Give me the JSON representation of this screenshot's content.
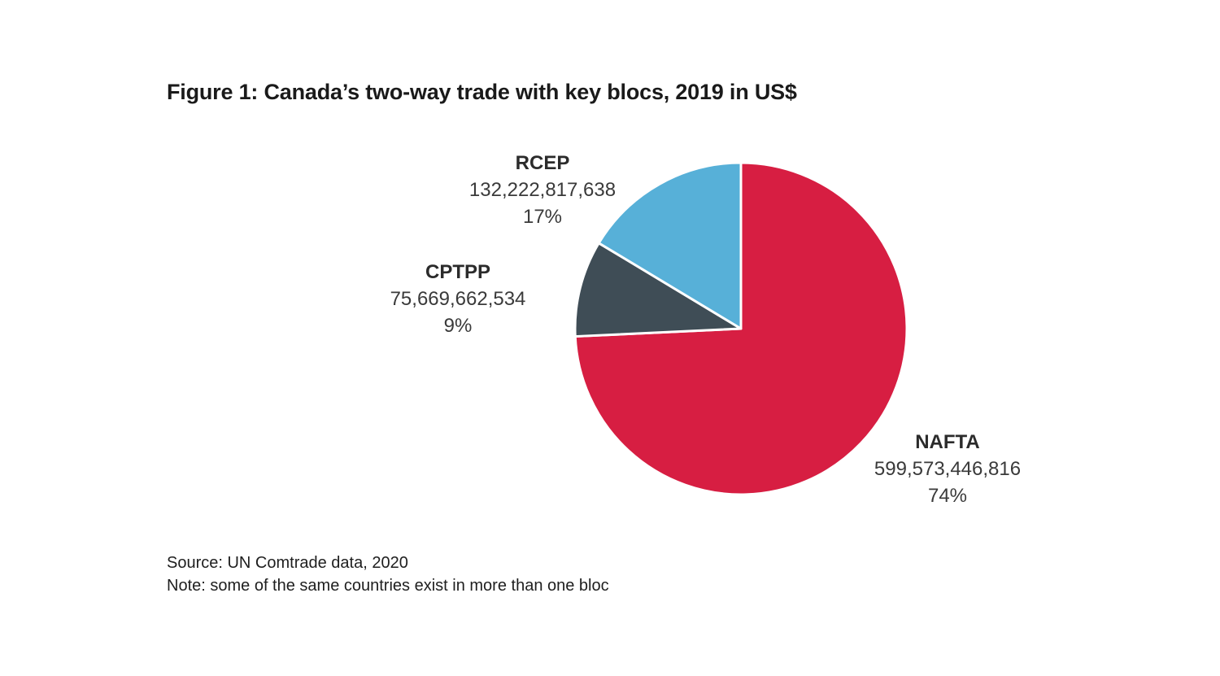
{
  "title": "Figure 1: Canada’s two-way trade with key blocs, 2019 in US$",
  "chart_data": {
    "type": "pie",
    "title": "Figure 1: Canada’s two-way trade with key blocs, 2019 in US$",
    "slices": [
      {
        "name": "NAFTA",
        "value": 599573446816,
        "value_label": "599,573,446,816",
        "percent_label": "74%",
        "color": "#d71e42"
      },
      {
        "name": "CPTPP",
        "value": 75669662534,
        "value_label": "75,669,662,534",
        "percent_label": "9%",
        "color": "#3f4d56"
      },
      {
        "name": "RCEP",
        "value": 132222817638,
        "value_label": "132,222,817,638",
        "percent_label": "17%",
        "color": "#57b0d8"
      }
    ]
  },
  "footer": {
    "source": "Source: UN Comtrade data, 2020",
    "note": "Note: some of the same countries exist in more than one bloc"
  }
}
